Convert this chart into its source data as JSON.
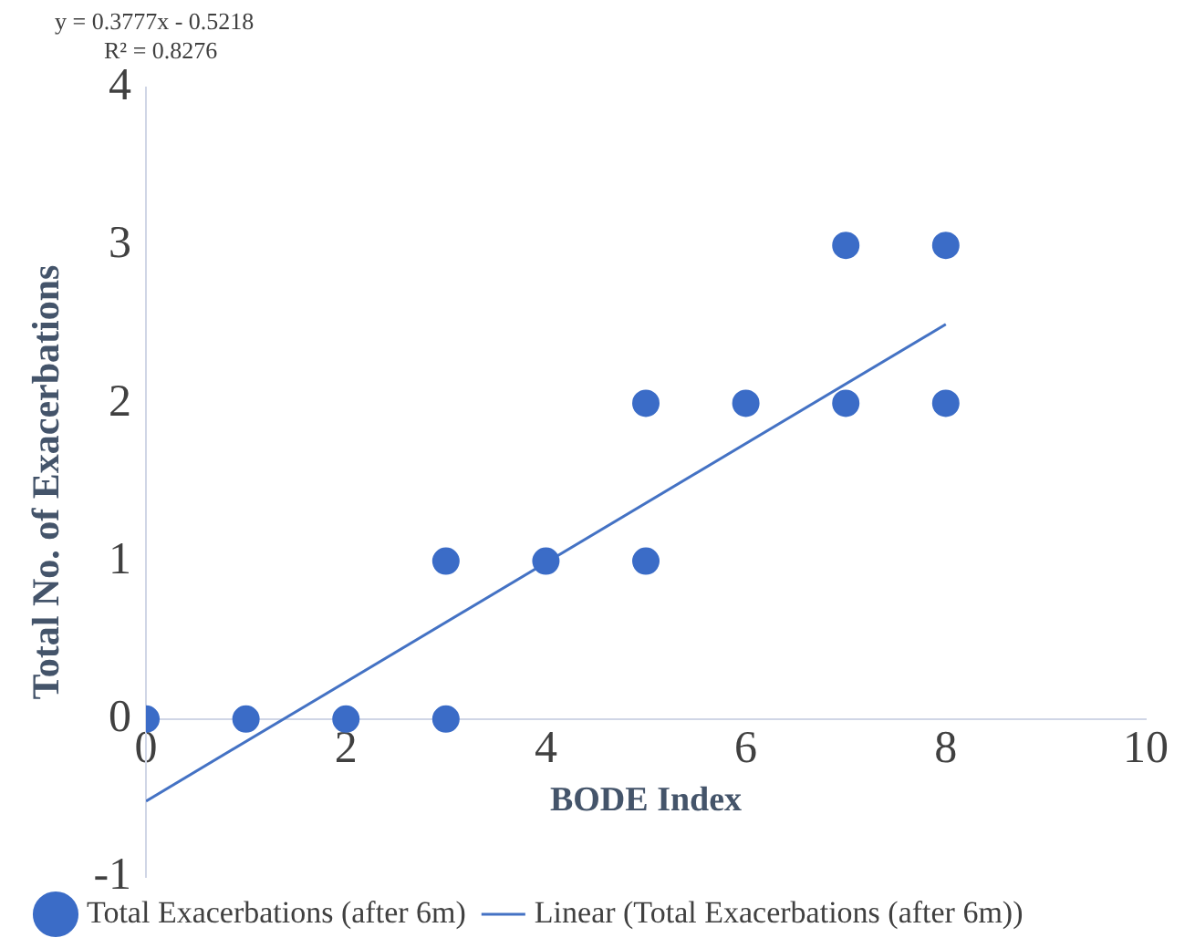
{
  "chart_data": {
    "type": "scatter",
    "xlabel": "BODE Index",
    "ylabel": "Total No. of Exacerbations",
    "annotations": [
      "y = 0.3777x - 0.5218",
      "R² = 0.8276"
    ],
    "xlim": [
      0,
      10
    ],
    "xticks": [
      0,
      2,
      4,
      6,
      8,
      10
    ],
    "ylim": [
      -1,
      4
    ],
    "yticks": [
      -1,
      0,
      1,
      2,
      3,
      4
    ],
    "grid": false,
    "legend": "bottom",
    "series": [
      {
        "name": "Total Exacerbations (after 6m)",
        "color": "#3b6cc7",
        "marker": "circle",
        "x": [
          0,
          1,
          2,
          3,
          3,
          4,
          5,
          5,
          6,
          7,
          7,
          8,
          8
        ],
        "values": [
          0,
          0,
          0,
          0,
          1,
          1,
          1,
          2,
          2,
          2,
          3,
          2,
          3
        ]
      },
      {
        "name": "Linear (Total Exacerbations (after 6m))",
        "type": "line",
        "color": "#4472c4",
        "marker": "none",
        "x": [
          0,
          8
        ],
        "values": [
          -0.52,
          2.5
        ]
      }
    ]
  }
}
